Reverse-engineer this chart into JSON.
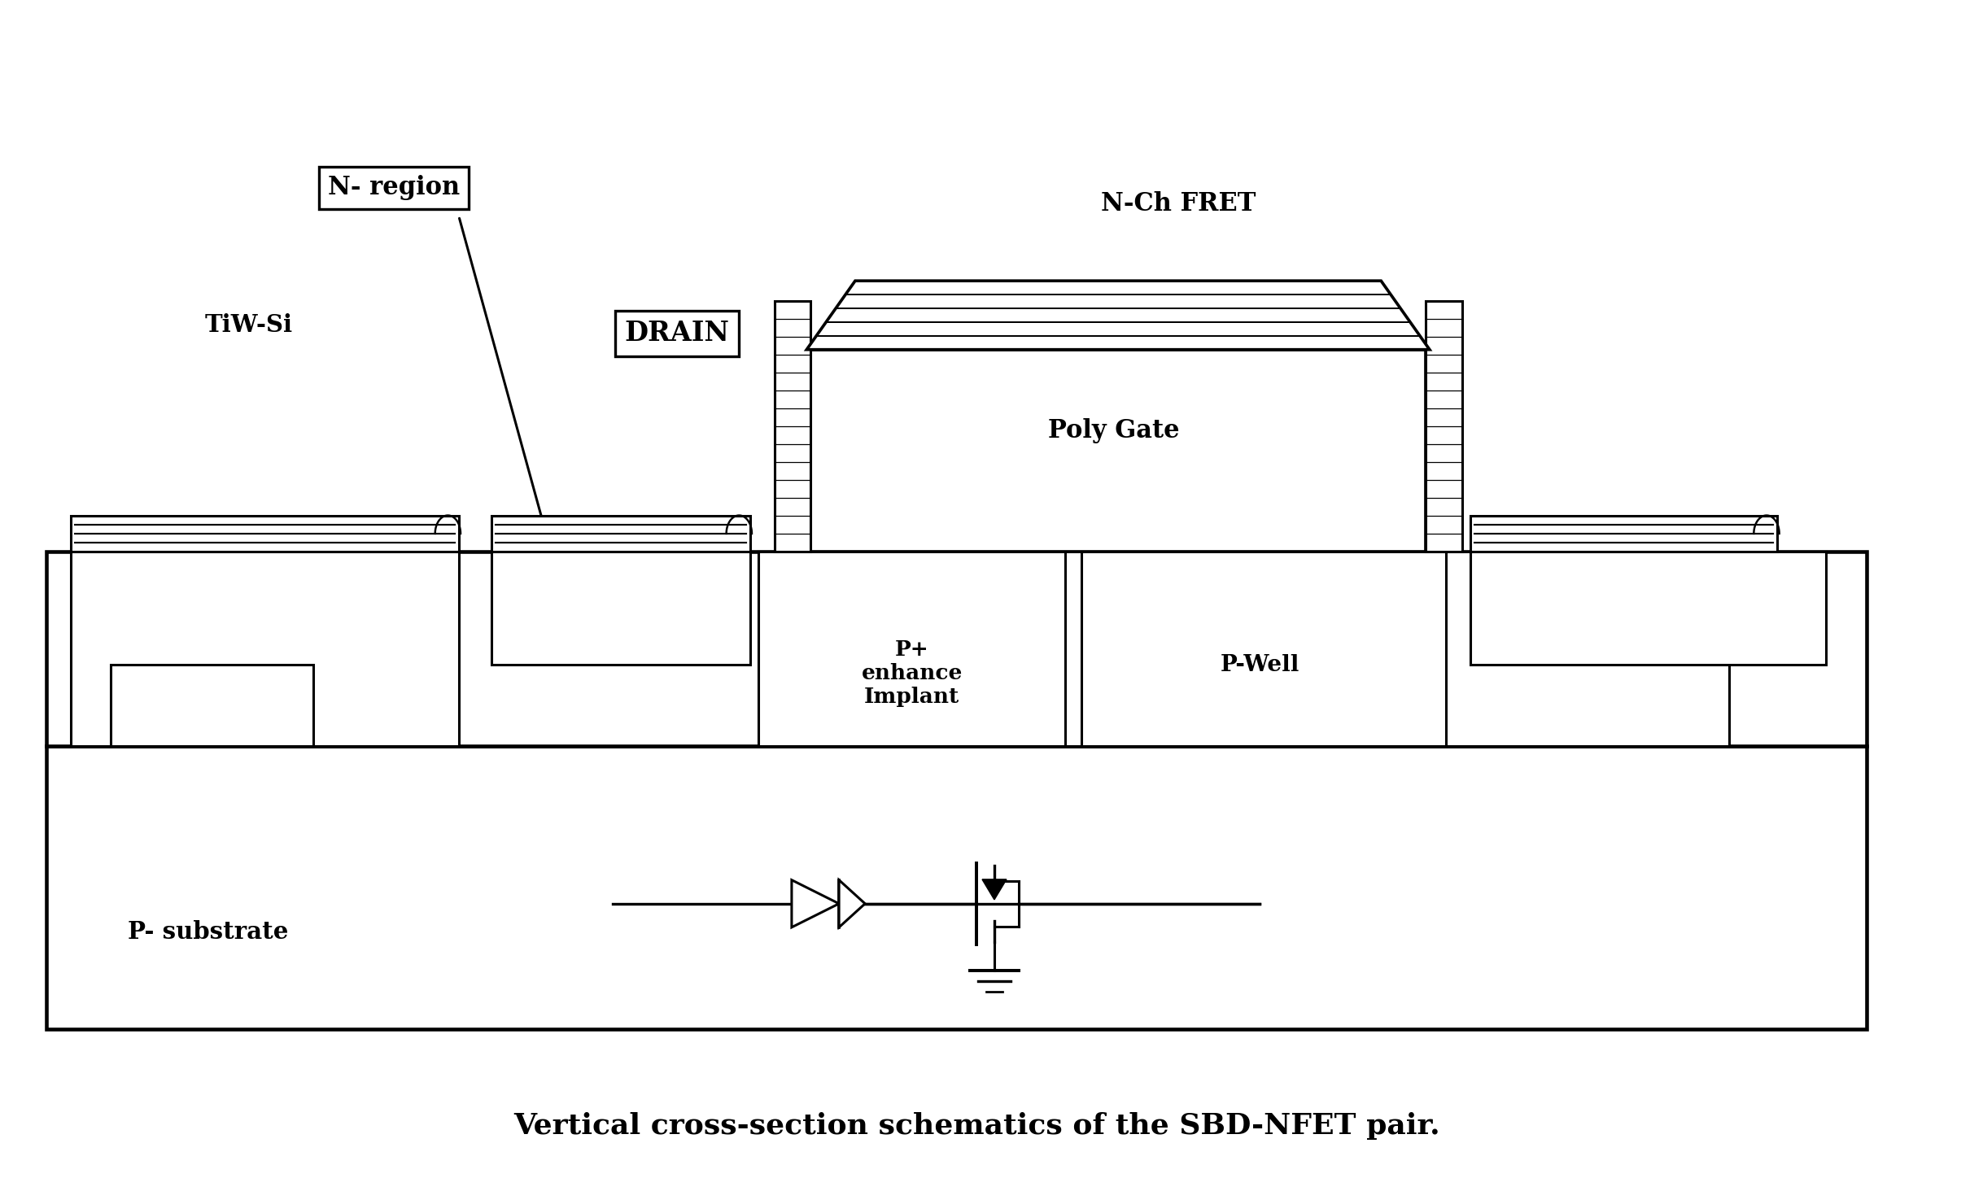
{
  "title": "Vertical cross-section schematics of the SBD-NFET pair.",
  "background_color": "#ffffff",
  "line_color": "#000000",
  "lw": 2.2,
  "fig_width": 24.37,
  "fig_height": 14.48,
  "labels": {
    "N_region": "N- region",
    "TiW_Si": "TiW-Si",
    "DRAIN": "DRAIN",
    "Poly_Gate": "Poly Gate",
    "N_Ch_FRET": "N-Ch FRET",
    "P_enhance": "P+\nenhance\nImplant",
    "P_Well": "P-Well",
    "P_substrate": "P- substrate"
  }
}
